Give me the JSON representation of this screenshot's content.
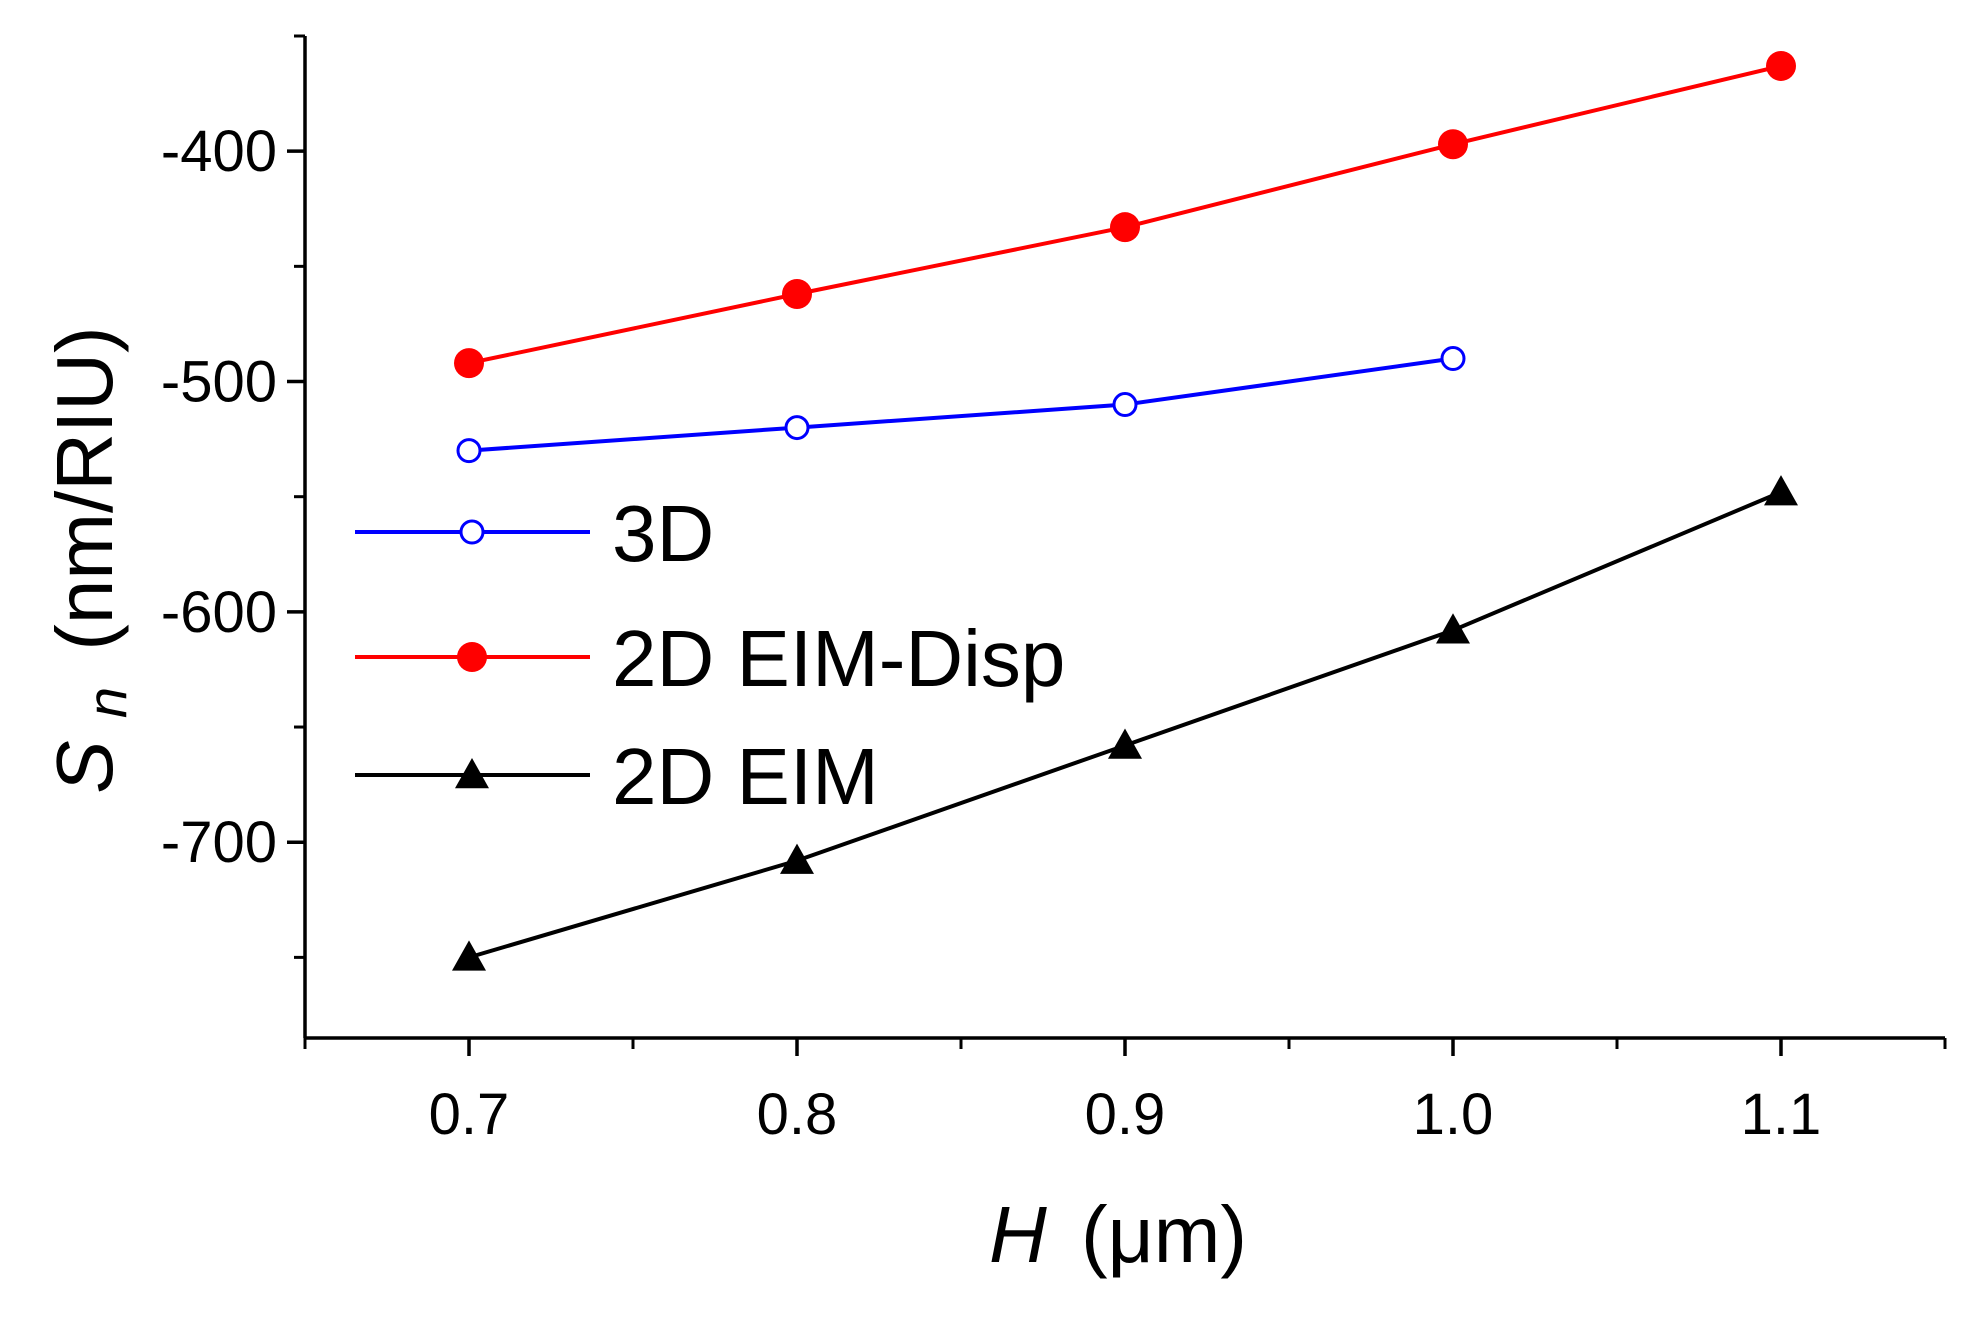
{
  "chart_data": {
    "type": "line",
    "title": "",
    "xlabel": {
      "var": "H",
      "unit": "(μm)"
    },
    "ylabel": {
      "var": "S",
      "sub": "n",
      "unit": "(nm/RIU)"
    },
    "xlim": [
      0.65,
      1.15
    ],
    "ylim": [
      -785,
      -350
    ],
    "x_ticks": [
      0.7,
      0.8,
      0.9,
      1.0,
      1.1
    ],
    "x_tick_labels": [
      "0.7",
      "0.8",
      "0.9",
      "1.0",
      "1.1"
    ],
    "x_minor_ticks": [
      0.65,
      0.75,
      0.85,
      0.95,
      1.05,
      1.15
    ],
    "y_ticks": [
      -400,
      -500,
      -600,
      -700
    ],
    "y_tick_labels": [
      "-400",
      "-500",
      "-600",
      "-700"
    ],
    "y_minor_ticks": [
      -350,
      -450,
      -550,
      -650,
      -750
    ],
    "legend_position": "left",
    "series": [
      {
        "name": "3D",
        "color": "#0000ff",
        "marker": "open-circle",
        "x": [
          0.7,
          0.8,
          0.9,
          1.0
        ],
        "y": [
          -530,
          -520,
          -510,
          -490
        ]
      },
      {
        "name": "2D EIM-Disp",
        "color": "#ff0000",
        "marker": "filled-circle",
        "x": [
          0.7,
          0.8,
          0.9,
          1.0,
          1.1
        ],
        "y": [
          -492,
          -462,
          -433,
          -397,
          -363
        ]
      },
      {
        "name": "2D EIM",
        "color": "#000000",
        "marker": "filled-triangle",
        "x": [
          0.7,
          0.8,
          0.9,
          1.0,
          1.1
        ],
        "y": [
          -750,
          -708,
          -658,
          -608,
          -548
        ]
      }
    ]
  }
}
